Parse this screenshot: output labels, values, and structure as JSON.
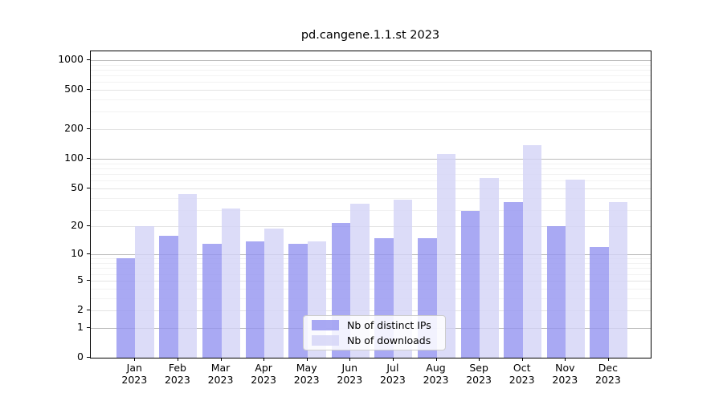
{
  "title": "pd.cangene.1.1.st 2023",
  "legend": {
    "items": [
      {
        "label": "Nb of distinct IPs",
        "color": "#9393f0"
      },
      {
        "label": "Nb of downloads",
        "color": "#d3d3f6"
      }
    ]
  },
  "chart_data": {
    "type": "bar",
    "title": "pd.cangene.1.1.st 2023",
    "categories": [
      "Jan 2023",
      "Feb 2023",
      "Mar 2023",
      "Apr 2023",
      "May 2023",
      "Jun 2023",
      "Jul 2023",
      "Aug 2023",
      "Sep 2023",
      "Oct 2023",
      "Nov 2023",
      "Dec 2023"
    ],
    "series": [
      {
        "name": "Nb of distinct IPs",
        "color": "#9393f0",
        "values": [
          9,
          16,
          13,
          14,
          13,
          22,
          15,
          15,
          29,
          36,
          20,
          12
        ]
      },
      {
        "name": "Nb of downloads",
        "color": "#d3d3f6",
        "values": [
          20,
          44,
          31,
          19,
          14,
          35,
          38,
          112,
          64,
          138,
          61,
          36
        ]
      }
    ],
    "yscale": "log1p",
    "yticks": [
      0,
      1,
      2,
      5,
      10,
      20,
      50,
      100,
      200,
      500,
      1000
    ],
    "ylim": [
      0,
      1210
    ],
    "grid": true,
    "legend_position": "lower center inside"
  },
  "colors": {
    "grid_major": "#bcbcbc",
    "grid_mid": "#e4e4e4",
    "grid_minor": "#f2f2f2",
    "axis": "#000000"
  }
}
